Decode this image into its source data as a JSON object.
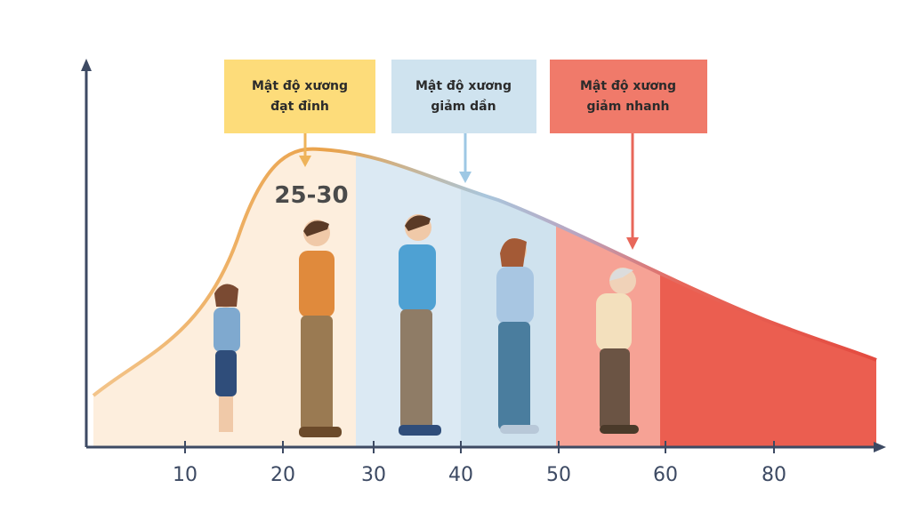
{
  "boxes": [
    {
      "lines": [
        "Mật độ xương",
        "đạt đỉnh"
      ]
    },
    {
      "lines": [
        "Mật độ xương",
        "giảm dần"
      ]
    },
    {
      "lines": [
        "Mật độ xương",
        "giảm nhanh"
      ]
    }
  ],
  "peak_label": "25-30",
  "x_axis": {
    "ticks": [
      10,
      20,
      30,
      40,
      50,
      60,
      80
    ]
  }
}
